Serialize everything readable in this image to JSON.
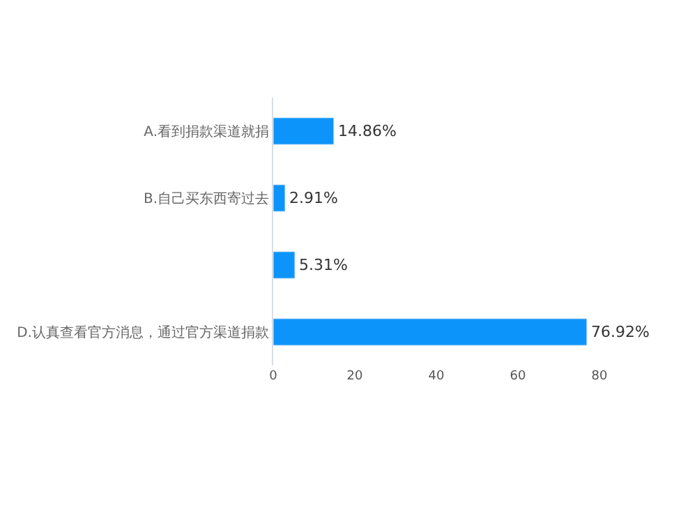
{
  "chart_data": {
    "type": "bar",
    "orientation": "horizontal",
    "categories": [
      "A.看到捐款渠道就捐",
      "B.自己买东西寄过去",
      null,
      "D.认真查看官方消息，通过官方渠道捐款"
    ],
    "values": [
      14.86,
      2.91,
      5.31,
      76.92
    ],
    "value_labels": [
      "14.86%",
      "2.91%",
      "5.31%",
      "76.92%"
    ],
    "color": "#0d94fb",
    "xlim": [
      0,
      80
    ],
    "xticks": [
      0,
      20,
      40,
      60,
      80
    ],
    "legend": false
  }
}
